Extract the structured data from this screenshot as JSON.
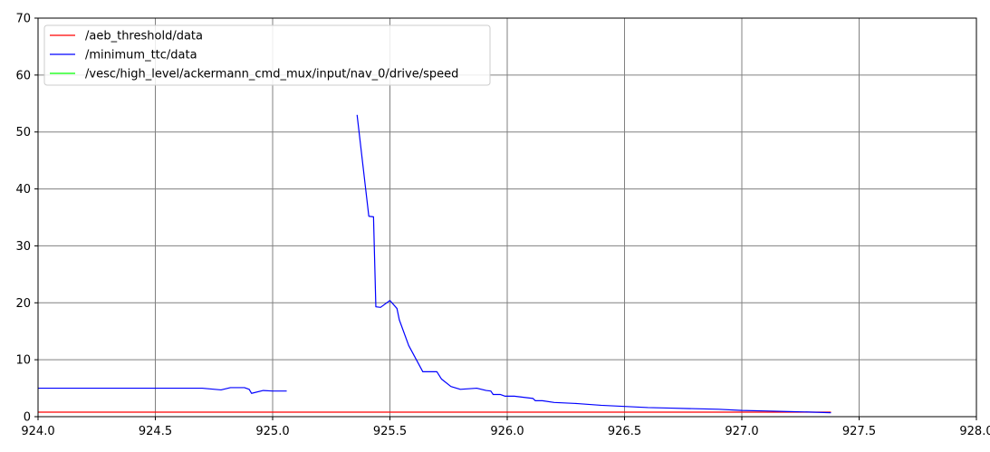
{
  "chart_data": {
    "type": "line",
    "title": "",
    "xlabel": "",
    "ylabel": "",
    "xlim": [
      924.0,
      928.0
    ],
    "ylim": [
      0,
      70
    ],
    "x_ticks": [
      "924.0",
      "924.5",
      "925.0",
      "925.5",
      "926.0",
      "926.5",
      "927.0",
      "927.5",
      "928.0"
    ],
    "y_ticks": [
      "0",
      "10",
      "20",
      "30",
      "40",
      "50",
      "60",
      "70"
    ],
    "grid": true,
    "legend_position": "top-left",
    "series": [
      {
        "name": "/aeb_threshold/data",
        "color": "#ff0000",
        "points": [
          [
            924.0,
            0.8
          ],
          [
            927.38,
            0.8
          ]
        ]
      },
      {
        "name": "/minimum_ttc/data",
        "color": "#0000ff",
        "segments": [
          [
            [
              924.0,
              5.0
            ],
            [
              924.3,
              5.0
            ],
            [
              924.7,
              5.0
            ],
            [
              924.78,
              4.7
            ],
            [
              924.82,
              5.1
            ],
            [
              924.88,
              5.1
            ],
            [
              924.9,
              4.8
            ],
            [
              924.91,
              4.1
            ],
            [
              924.96,
              4.6
            ],
            [
              925.0,
              4.5
            ],
            [
              925.06,
              4.5
            ]
          ],
          [
            [
              925.36,
              53.0
            ],
            [
              925.41,
              35.2
            ],
            [
              925.43,
              35.1
            ],
            [
              925.44,
              19.3
            ],
            [
              925.46,
              19.2
            ],
            [
              925.5,
              20.4
            ],
            [
              925.53,
              19.0
            ],
            [
              925.54,
              17.0
            ],
            [
              925.58,
              12.5
            ],
            [
              925.64,
              7.9
            ],
            [
              925.7,
              7.9
            ],
            [
              925.72,
              6.6
            ],
            [
              925.76,
              5.3
            ],
            [
              925.8,
              4.8
            ],
            [
              925.87,
              5.0
            ],
            [
              925.91,
              4.6
            ],
            [
              925.93,
              4.5
            ],
            [
              925.94,
              3.9
            ],
            [
              925.97,
              3.9
            ],
            [
              925.99,
              3.6
            ],
            [
              926.03,
              3.6
            ],
            [
              926.11,
              3.2
            ],
            [
              926.12,
              2.8
            ],
            [
              926.15,
              2.8
            ],
            [
              926.2,
              2.5
            ],
            [
              926.3,
              2.3
            ],
            [
              926.4,
              2.0
            ],
            [
              926.5,
              1.8
            ],
            [
              926.6,
              1.6
            ],
            [
              926.7,
              1.5
            ],
            [
              926.8,
              1.4
            ],
            [
              926.9,
              1.3
            ],
            [
              927.0,
              1.1
            ],
            [
              927.1,
              1.0
            ],
            [
              927.2,
              0.9
            ],
            [
              927.3,
              0.8
            ],
            [
              927.38,
              0.7
            ]
          ]
        ]
      },
      {
        "name": "/vesc/high_level/ackermann_cmd_mux/input/nav_0/drive/speed",
        "color": "#00ff00",
        "points": []
      }
    ]
  }
}
